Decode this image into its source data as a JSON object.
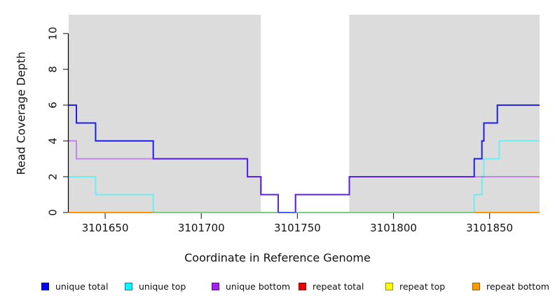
{
  "figure": {
    "xlabel": "Coordinate in Reference Genome",
    "ylabel": "Read Coverage Depth"
  },
  "chart_data": {
    "type": "line",
    "step": true,
    "title": "",
    "xlabel": "Coordinate in Reference Genome",
    "ylabel": "Read Coverage Depth",
    "xlim": [
      3101631,
      3101876
    ],
    "ylim": [
      0,
      11.05
    ],
    "xticks": [
      "3101650",
      "3101700",
      "3101750",
      "3101800",
      "3101850"
    ],
    "xtick_values": [
      3101650,
      3101700,
      3101750,
      3101800,
      3101850
    ],
    "yticks": [
      "0",
      "2",
      "4",
      "6",
      "8",
      "10"
    ],
    "ytick_values": [
      0,
      2,
      4,
      6,
      8,
      10
    ],
    "grid": false,
    "plot_bg": "#dcdcdc",
    "page_bg": "#ffffff",
    "uncovered_region": {
      "x_from": 3101731,
      "x_to": 3101777,
      "color": "#ffffff"
    },
    "legend_position": "bottom",
    "draw_order": [
      3,
      4,
      5,
      0,
      1,
      2
    ],
    "series": [
      {
        "name": "unique total",
        "color": "#1f1fe8",
        "opacity": 1,
        "legend_fill": "#0202f0",
        "legend_border": "#000090",
        "points": [
          [
            3101631,
            6
          ],
          [
            3101635,
            6
          ],
          [
            3101635,
            5
          ],
          [
            3101645,
            5
          ],
          [
            3101645,
            4
          ],
          [
            3101675,
            4
          ],
          [
            3101675,
            3
          ],
          [
            3101724,
            3
          ],
          [
            3101724,
            2
          ],
          [
            3101731,
            2
          ],
          [
            3101731,
            1
          ],
          [
            3101740,
            1
          ],
          [
            3101740,
            0
          ],
          [
            3101749,
            0
          ],
          [
            3101749,
            1
          ],
          [
            3101777,
            1
          ],
          [
            3101777,
            2
          ],
          [
            3101842,
            2
          ],
          [
            3101842,
            3
          ],
          [
            3101846,
            3
          ],
          [
            3101846,
            4
          ],
          [
            3101847,
            4
          ],
          [
            3101847,
            5
          ],
          [
            3101854,
            5
          ],
          [
            3101854,
            6
          ],
          [
            3101876,
            6
          ]
        ]
      },
      {
        "name": "unique top",
        "color": "#00ffff",
        "opacity": 0.5,
        "legend_fill": "#00ffff",
        "legend_border": "#107a9b",
        "points": [
          [
            3101631,
            2
          ],
          [
            3101645,
            2
          ],
          [
            3101645,
            1
          ],
          [
            3101675,
            1
          ],
          [
            3101675,
            0
          ],
          [
            3101842,
            0
          ],
          [
            3101842,
            1
          ],
          [
            3101846,
            1
          ],
          [
            3101846,
            2
          ],
          [
            3101847,
            2
          ],
          [
            3101847,
            3
          ],
          [
            3101855,
            3
          ],
          [
            3101855,
            4
          ],
          [
            3101876,
            4
          ]
        ]
      },
      {
        "name": "unique bottom",
        "color": "#a020f0",
        "opacity": 0.45,
        "legend_fill": "#a021f0",
        "legend_border": "#5f0f8f",
        "points": [
          [
            3101631,
            4
          ],
          [
            3101635,
            4
          ],
          [
            3101635,
            3
          ],
          [
            3101724,
            3
          ],
          [
            3101724,
            2
          ],
          [
            3101731,
            2
          ],
          [
            3101731,
            1
          ],
          [
            3101740,
            1
          ],
          [
            3101740,
            0
          ],
          [
            3101749,
            0
          ],
          [
            3101749,
            1
          ],
          [
            3101777,
            1
          ],
          [
            3101777,
            2
          ],
          [
            3101876,
            2
          ]
        ]
      },
      {
        "name": "repeat total",
        "color": "#dd0000",
        "opacity": 1,
        "legend_fill": "#e80202",
        "legend_border": "#8f0000",
        "points": [
          [
            3101631,
            0
          ],
          [
            3101876,
            0
          ]
        ]
      },
      {
        "name": "repeat top",
        "color": "#ffff00",
        "opacity": 1,
        "legend_fill": "#ffff02",
        "legend_border": "#8f8f00",
        "points": [
          [
            3101631,
            0
          ],
          [
            3101876,
            0
          ]
        ]
      },
      {
        "name": "repeat bottom",
        "color": "#ff9300",
        "opacity": 1,
        "legend_fill": "#ff9902",
        "legend_border": "#9b5f00",
        "points": [
          [
            3101631,
            0
          ],
          [
            3101876,
            0
          ]
        ]
      }
    ]
  }
}
